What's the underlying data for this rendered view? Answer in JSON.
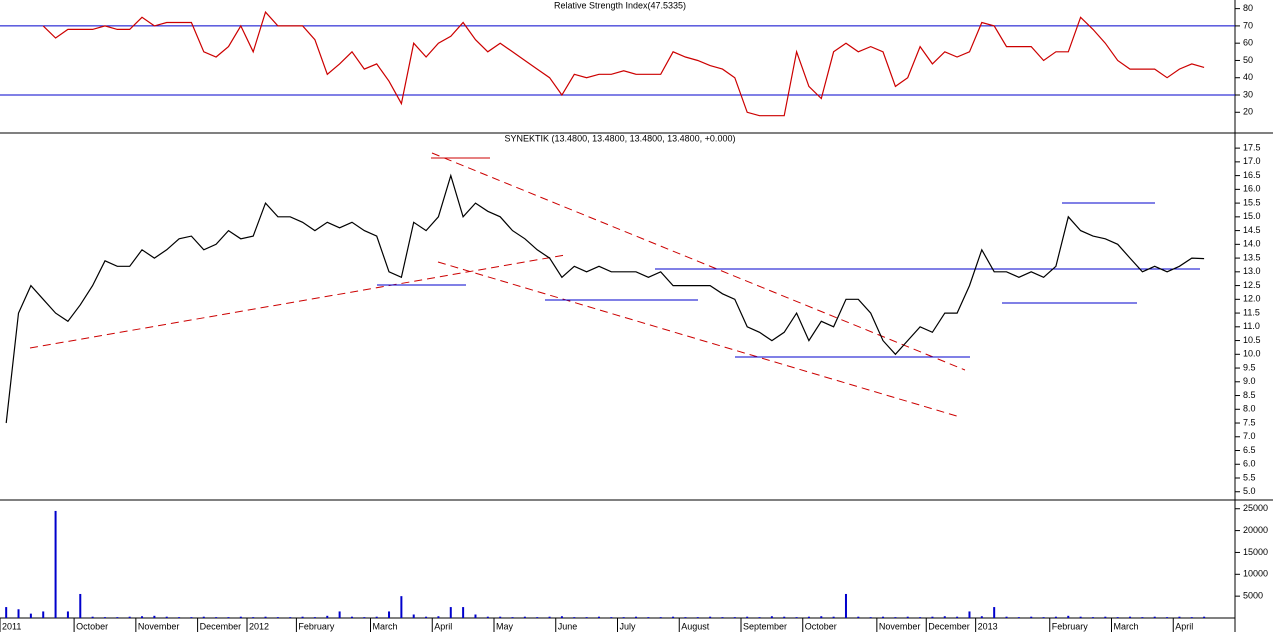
{
  "chart_data": [
    {
      "type": "line",
      "title": "Relative Strength Index(47.5335)",
      "color": "#cc0000",
      "ylim": [
        8,
        85
      ],
      "yticks": [
        20,
        30,
        40,
        50,
        60,
        70,
        80
      ],
      "reference_lines": [
        70,
        30
      ],
      "reference_color": "#0000cc",
      "values": [
        null,
        null,
        null,
        70,
        63,
        68,
        68,
        68,
        70,
        68,
        68,
        75,
        70,
        72,
        72,
        72,
        55,
        52,
        58,
        70,
        55,
        78,
        70,
        70,
        70,
        62,
        42,
        48,
        55,
        45,
        48,
        38,
        25,
        60,
        52,
        60,
        64,
        72,
        62,
        55,
        60,
        55,
        50,
        45,
        40,
        30,
        42,
        40,
        42,
        42,
        44,
        42,
        42,
        42,
        55,
        52,
        50,
        47,
        45,
        40,
        20,
        18,
        18,
        18,
        55,
        35,
        28,
        55,
        60,
        55,
        58,
        55,
        35,
        40,
        58,
        48,
        55,
        52,
        55,
        72,
        70,
        58,
        58,
        58,
        50,
        55,
        55,
        75,
        68,
        60,
        50,
        45,
        45,
        45,
        40,
        45,
        48,
        46,
        null,
        null
      ]
    },
    {
      "type": "line",
      "title": "SYNEKTIK (13.4800, 13.4800, 13.4800, 13.4800, +0.000)",
      "color": "#000000",
      "ylim": [
        4.7,
        18.05
      ],
      "yticks": [
        {
          "value": 5,
          "label": "5.0"
        },
        5.5,
        {
          "value": 6,
          "label": "6.0"
        },
        6.5,
        {
          "value": 7,
          "label": "7.0"
        },
        7.5,
        {
          "value": 8,
          "label": "8.0"
        },
        8.5,
        {
          "value": 9,
          "label": "9.0"
        },
        9.5,
        {
          "value": 10,
          "label": "10.0"
        },
        10.5,
        {
          "value": 11,
          "label": "11.0"
        },
        11.5,
        {
          "value": 12,
          "label": "12.0"
        },
        12.5,
        {
          "value": 13,
          "label": "13.0"
        },
        13.5,
        {
          "value": 14,
          "label": "14.0"
        },
        14.5,
        {
          "value": 15,
          "label": "15.0"
        },
        15.5,
        {
          "value": 16,
          "label": "16.0"
        },
        16.5,
        {
          "value": 17,
          "label": "17.0"
        },
        17.5
      ],
      "values": [
        7.5,
        11.5,
        12.5,
        12,
        11.5,
        11.2,
        11.8,
        12.5,
        13.4,
        13.2,
        13.2,
        13.8,
        13.5,
        13.8,
        14.2,
        14.3,
        13.8,
        14,
        14.5,
        14.2,
        14.3,
        15.5,
        15,
        15,
        14.8,
        14.5,
        14.8,
        14.6,
        14.8,
        14.5,
        14.3,
        13,
        12.8,
        14.8,
        14.5,
        15,
        16.5,
        15,
        15.5,
        15.2,
        15,
        14.5,
        14.2,
        13.8,
        13.5,
        12.8,
        13.2,
        13,
        13.2,
        13,
        13,
        13,
        12.8,
        13,
        12.5,
        12.5,
        12.5,
        12.5,
        12.2,
        12,
        11,
        10.8,
        10.5,
        10.8,
        11.5,
        10.5,
        11.2,
        11,
        12,
        12,
        11.5,
        10.5,
        10,
        10.5,
        11,
        10.8,
        11.5,
        11.5,
        12.5,
        13.8,
        13,
        13,
        12.8,
        13,
        12.8,
        13.2,
        15,
        14.5,
        14.3,
        14.2,
        14,
        13.5,
        13,
        13.2,
        13,
        13.2,
        13.5,
        13.48,
        null,
        null
      ]
    },
    {
      "type": "bar",
      "color": "#0000cc",
      "ylim": [
        0,
        27000
      ],
      "yticks": [
        5000,
        10000,
        15000,
        20000,
        25000
      ],
      "categories": [
        "2011",
        null,
        null,
        null,
        null,
        null,
        "October",
        null,
        null,
        null,
        null,
        "November",
        null,
        null,
        null,
        null,
        "December",
        null,
        null,
        null,
        "2012",
        null,
        null,
        null,
        "February",
        null,
        null,
        null,
        null,
        null,
        "March",
        null,
        null,
        null,
        null,
        "April",
        null,
        null,
        null,
        null,
        "May",
        null,
        null,
        null,
        null,
        "June",
        null,
        null,
        null,
        null,
        "July",
        null,
        null,
        null,
        null,
        "August",
        null,
        null,
        null,
        null,
        "September",
        null,
        null,
        null,
        null,
        "October",
        null,
        null,
        null,
        null,
        null,
        "November",
        null,
        null,
        null,
        "December",
        null,
        null,
        null,
        "2013",
        null,
        null,
        null,
        null,
        null,
        "February",
        null,
        null,
        null,
        null,
        "March",
        null,
        null,
        null,
        null,
        "April",
        null,
        null,
        null,
        null
      ],
      "values": [
        2500,
        2000,
        1000,
        1500,
        24500,
        1500,
        5500,
        300,
        200,
        200,
        300,
        400,
        500,
        300,
        200,
        200,
        300,
        200,
        200,
        300,
        200,
        300,
        200,
        200,
        300,
        200,
        500,
        1500,
        300,
        200,
        300,
        1500,
        5000,
        800,
        300,
        400,
        2500,
        2500,
        800,
        300,
        300,
        200,
        300,
        200,
        300,
        400,
        200,
        200,
        300,
        200,
        200,
        300,
        200,
        200,
        300,
        200,
        200,
        300,
        200,
        200,
        300,
        200,
        400,
        300,
        200,
        300,
        400,
        300,
        5500,
        300,
        200,
        300,
        200,
        300,
        200,
        300,
        400,
        300,
        1500,
        400,
        2500,
        300,
        200,
        300,
        200,
        300,
        500,
        300,
        200,
        300,
        200,
        300,
        200,
        300,
        200,
        300,
        200,
        300,
        null,
        null
      ]
    }
  ]
}
